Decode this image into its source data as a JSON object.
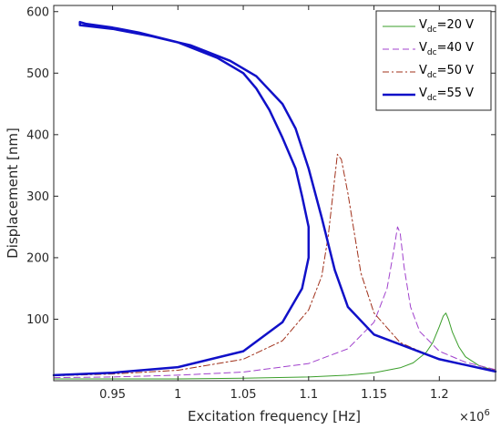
{
  "chart_data": {
    "type": "line",
    "xlabel": "Excitation frequency [Hz]",
    "ylabel": "Displacement [nm]",
    "x_exponent_label": "×10",
    "x_exponent": "6",
    "xlim": [
      0.905,
      1.243
    ],
    "ylim": [
      0,
      610
    ],
    "x_ticks": [
      0.95,
      1,
      1.05,
      1.1,
      1.15,
      1.2
    ],
    "x_tick_labels": [
      "0.95",
      "1",
      "1.05",
      "1.1",
      "1.15",
      "1.2"
    ],
    "y_ticks": [
      100,
      200,
      300,
      400,
      500,
      600
    ],
    "y_tick_labels": [
      "100",
      "200",
      "300",
      "400",
      "500",
      "600"
    ],
    "grid": false,
    "legend_position": "top-right",
    "series": [
      {
        "name_main": "V",
        "name_sub": "dc",
        "name_rest": "=20 V",
        "color": "#3a9e2a",
        "dash": "solid",
        "width": 1,
        "x": [
          0.905,
          0.95,
          1.0,
          1.05,
          1.1,
          1.13,
          1.15,
          1.17,
          1.18,
          1.19,
          1.195,
          1.2,
          1.203,
          1.205,
          1.207,
          1.21,
          1.215,
          1.22,
          1.23,
          1.243
        ],
        "y": [
          3,
          3,
          3,
          4,
          6,
          9,
          13,
          21,
          29,
          46,
          62,
          88,
          105,
          110,
          100,
          79,
          55,
          39,
          25,
          16
        ]
      },
      {
        "name_main": "V",
        "name_sub": "dc",
        "name_rest": "=40 V",
        "color": "#a040cc",
        "dash": "7,4",
        "width": 1,
        "x": [
          0.905,
          0.95,
          1.0,
          1.05,
          1.1,
          1.13,
          1.15,
          1.16,
          1.165,
          1.168,
          1.17,
          1.173,
          1.178,
          1.185,
          1.2,
          1.22,
          1.243
        ],
        "y": [
          5,
          6,
          9,
          14,
          28,
          52,
          95,
          150,
          210,
          250,
          240,
          185,
          120,
          80,
          48,
          30,
          18
        ]
      },
      {
        "name_main": "V",
        "name_sub": "dc",
        "name_rest": "=50 V",
        "color": "#a0301a",
        "dash": "7,3,2,3",
        "width": 1,
        "x": [
          0.905,
          0.95,
          1.0,
          1.05,
          1.08,
          1.1,
          1.11,
          1.115,
          1.12,
          1.122,
          1.125,
          1.13,
          1.135,
          1.14,
          1.15,
          1.17,
          1.2,
          1.243
        ],
        "y": [
          8,
          11,
          17,
          35,
          65,
          115,
          170,
          235,
          330,
          368,
          360,
          305,
          240,
          175,
          110,
          62,
          34,
          17
        ]
      },
      {
        "name_main": "V",
        "name_sub": "dc",
        "name_rest": "=55 V",
        "color": "#1010c8",
        "dash": "solid",
        "width": 2.5,
        "x": [
          0.905,
          0.95,
          1.0,
          1.05,
          1.08,
          1.095,
          1.1,
          1.1,
          1.095,
          1.09,
          1.08,
          1.07,
          1.06,
          1.05,
          1.03,
          1.0,
          0.97,
          0.95,
          0.93,
          0.925,
          0.925,
          0.95,
          0.98,
          1.01,
          1.04,
          1.06,
          1.08,
          1.09,
          1.1,
          1.11,
          1.12,
          1.13,
          1.15,
          1.2,
          1.243
        ],
        "y": [
          9,
          13,
          22,
          48,
          95,
          150,
          200,
          250,
          300,
          345,
          395,
          440,
          475,
          500,
          525,
          550,
          566,
          574,
          580,
          583,
          578,
          572,
          560,
          545,
          520,
          495,
          450,
          410,
          345,
          265,
          180,
          120,
          75,
          35,
          15
        ]
      }
    ]
  }
}
